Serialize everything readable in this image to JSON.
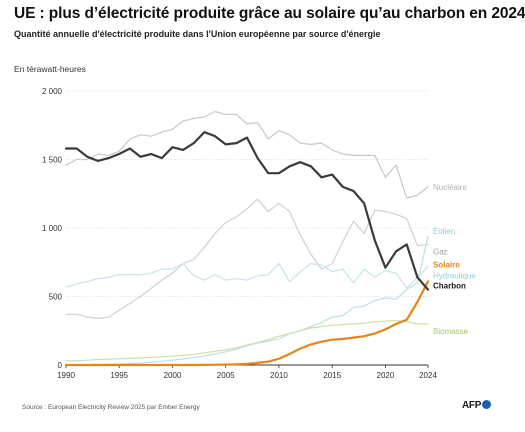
{
  "title": "UE : plus d’électricité produite grâce au solaire qu’au charbon en 2024",
  "subtitle": "Quantité annuelle d'électricité produite dans l'Union européenne par source d'énergie",
  "unit_label": "En térawatt-heures",
  "source": "Source : European Electricity Review 2025 par Ember Energy",
  "logo_text": "AFP",
  "chart_data": {
    "type": "line",
    "title": "UE : plus d’électricité produite grâce au solaire qu’au charbon en 2024",
    "xlabel": "",
    "ylabel": "En térawatt-heures",
    "xlim": [
      1990,
      2024
    ],
    "ylim": [
      0,
      2000
    ],
    "x_ticks": [
      1990,
      1995,
      2000,
      2005,
      2010,
      2015,
      2020,
      2024
    ],
    "x_tick_labels": [
      "1990",
      "1995",
      "2000",
      "2005",
      "2010",
      "2015",
      "2020",
      "2024"
    ],
    "y_ticks": [
      0,
      500,
      1000,
      1500,
      2000
    ],
    "y_tick_labels": [
      "0",
      "500",
      "1 000",
      "1 500",
      "2 000"
    ],
    "grid": "horizontal",
    "legend": "direct labels at line ends",
    "x": [
      1990,
      1991,
      1992,
      1993,
      1994,
      1995,
      1996,
      1997,
      1998,
      1999,
      2000,
      2001,
      2002,
      2003,
      2004,
      2005,
      2006,
      2007,
      2008,
      2009,
      2010,
      2011,
      2012,
      2013,
      2014,
      2015,
      2016,
      2017,
      2018,
      2019,
      2020,
      2021,
      2022,
      2023,
      2024
    ],
    "series": [
      {
        "name": "Nucléaire",
        "color": "#c8c8c8",
        "width": 1.2,
        "values": [
          1460,
          1500,
          1500,
          1540,
          1530,
          1560,
          1650,
          1680,
          1670,
          1700,
          1720,
          1780,
          1800,
          1810,
          1850,
          1830,
          1830,
          1760,
          1770,
          1650,
          1710,
          1680,
          1620,
          1610,
          1620,
          1570,
          1540,
          1530,
          1530,
          1530,
          1370,
          1460,
          1220,
          1240,
          1300
        ]
      },
      {
        "name": "Éolien",
        "color": "#b9dfe8",
        "width": 1.2,
        "values": [
          1,
          2,
          3,
          4,
          5,
          7,
          10,
          14,
          20,
          27,
          36,
          44,
          55,
          66,
          82,
          96,
          115,
          140,
          160,
          175,
          190,
          230,
          250,
          280,
          310,
          350,
          360,
          420,
          430,
          470,
          490,
          480,
          550,
          600,
          940
        ]
      },
      {
        "name": "Gaz",
        "color": "#d0d0d0",
        "width": 1.2,
        "values": [
          370,
          370,
          350,
          340,
          350,
          400,
          450,
          500,
          560,
          620,
          670,
          740,
          770,
          860,
          960,
          1040,
          1080,
          1140,
          1210,
          1120,
          1180,
          1120,
          950,
          810,
          700,
          740,
          900,
          1050,
          960,
          1130,
          1120,
          1100,
          1070,
          870,
          880
        ]
      },
      {
        "name": "Hydraulique",
        "color": "#c6e3ec",
        "width": 1.2,
        "values": [
          570,
          590,
          610,
          630,
          640,
          660,
          660,
          660,
          670,
          700,
          700,
          740,
          650,
          620,
          660,
          620,
          630,
          620,
          650,
          660,
          740,
          610,
          680,
          740,
          730,
          680,
          700,
          600,
          700,
          640,
          690,
          670,
          560,
          640,
          720
        ]
      },
      {
        "name": "Biomasse",
        "color": "#cfe0a5",
        "width": 1.2,
        "values": [
          30,
          30,
          35,
          40,
          42,
          45,
          48,
          52,
          56,
          60,
          65,
          70,
          78,
          88,
          100,
          110,
          125,
          145,
          165,
          185,
          210,
          230,
          250,
          270,
          280,
          290,
          295,
          300,
          305,
          315,
          320,
          325,
          315,
          300,
          300
        ]
      },
      {
        "name": "Solaire",
        "color": "#e6851e",
        "width": 2.2,
        "values": [
          0,
          0,
          0,
          0,
          0,
          0,
          0,
          0,
          0,
          0,
          0,
          0,
          0,
          1,
          2,
          3,
          5,
          8,
          15,
          25,
          45,
          80,
          120,
          150,
          170,
          185,
          190,
          200,
          210,
          230,
          260,
          300,
          330,
          460,
          610
        ]
      },
      {
        "name": "Charbon",
        "color": "#3a3a3a",
        "width": 2.2,
        "values": [
          1580,
          1580,
          1520,
          1490,
          1510,
          1540,
          1580,
          1520,
          1540,
          1510,
          1590,
          1570,
          1620,
          1700,
          1670,
          1610,
          1620,
          1660,
          1510,
          1400,
          1400,
          1450,
          1480,
          1450,
          1370,
          1390,
          1300,
          1270,
          1180,
          910,
          710,
          830,
          880,
          640,
          550
        ]
      }
    ],
    "end_labels": [
      {
        "name": "Nucléaire",
        "text": "Nucléaire",
        "color": "#b0b0b0",
        "bold": false
      },
      {
        "name": "Éolien",
        "text": "Éolien",
        "color": "#8ecfe0",
        "bold": false
      },
      {
        "name": "Gaz",
        "text": "Gaz",
        "color": "#a0a0a0",
        "bold": false
      },
      {
        "name": "Hydraulique",
        "text": "Hydraulique",
        "color": "#8ecfe0",
        "bold": false
      },
      {
        "name": "Solaire",
        "text": "Solaire",
        "color": "#e6851e",
        "bold": true
      },
      {
        "name": "Charbon",
        "text": "Charbon",
        "color": "#1a1a1a",
        "bold": true
      },
      {
        "name": "Biomasse",
        "text": "Biomasse",
        "color": "#a9c46a",
        "bold": false
      }
    ]
  }
}
